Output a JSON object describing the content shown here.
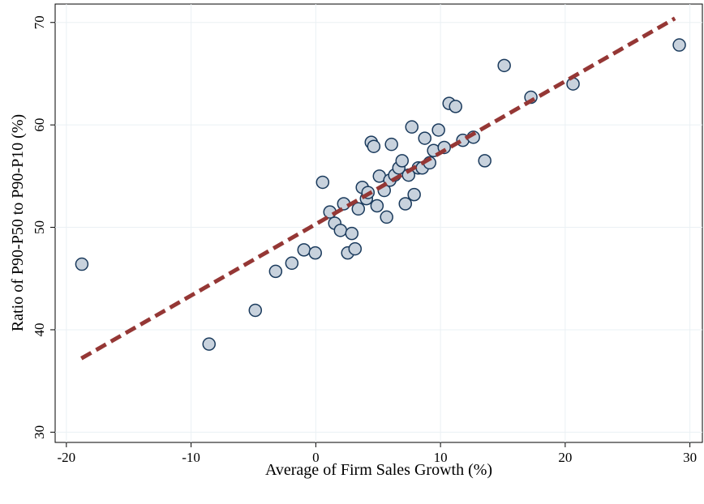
{
  "chart_data": {
    "type": "scatter",
    "xlabel": "Average of Firm Sales Growth (%)",
    "ylabel": "Ratio of P90-P50 to P90-P10 (%)",
    "xlim": [
      -20.9,
      31
    ],
    "ylim": [
      29,
      71.8
    ],
    "xticks": [
      -20,
      -10,
      0,
      10,
      20,
      30
    ],
    "yticks": [
      30,
      40,
      50,
      60,
      70
    ],
    "grid": true,
    "points": {
      "color": "#c8d2dd",
      "edgecolor": "#1a3a5c",
      "x": [
        -18.76,
        -8.56,
        -4.85,
        -3.22,
        -1.92,
        -0.95,
        -0.04,
        0.55,
        1.13,
        1.52,
        1.98,
        2.24,
        2.56,
        2.89,
        3.15,
        3.41,
        3.73,
        4.06,
        4.19,
        4.45,
        4.65,
        4.91,
        5.1,
        5.49,
        5.68,
        5.94,
        6.07,
        6.33,
        6.66,
        6.92,
        7.18,
        7.44,
        7.7,
        7.89,
        8.22,
        8.54,
        8.74,
        9.13,
        9.45,
        9.84,
        10.3,
        10.69,
        11.21,
        11.79,
        12.64,
        13.55,
        15.11,
        17.25,
        20.63,
        29.15
      ],
      "y": [
        46.4,
        38.6,
        41.9,
        45.7,
        46.5,
        47.8,
        47.5,
        54.4,
        51.5,
        50.4,
        49.7,
        52.3,
        47.5,
        49.4,
        47.9,
        51.8,
        53.9,
        52.8,
        53.4,
        58.3,
        57.9,
        52.1,
        55.0,
        53.6,
        51.0,
        54.6,
        58.1,
        55.1,
        55.8,
        56.5,
        52.3,
        55.1,
        59.8,
        53.2,
        55.8,
        55.8,
        58.7,
        56.3,
        57.5,
        59.5,
        57.8,
        62.1,
        61.8,
        58.5,
        58.8,
        56.5,
        65.8,
        62.7,
        64.0,
        67.8
      ]
    },
    "fit_line": {
      "color": "#953735",
      "x": [
        -18.8,
        28.8
      ],
      "y": [
        37.2,
        70.4
      ]
    }
  }
}
